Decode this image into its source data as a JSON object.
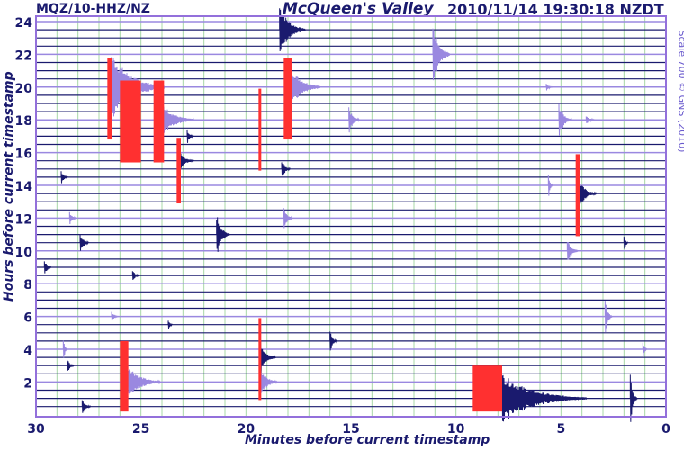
{
  "header": {
    "station": "MQZ/10-HHZ/NZ",
    "title": "McQueen's Valley",
    "timestamp": "2010/11/14 19:30:18 NZDT",
    "scale_note": "Scale 700 © GNS (2010)"
  },
  "chart_data": {
    "type": "line",
    "title": "McQueen's Valley",
    "xlabel": "Minutes before current timestamp",
    "ylabel": "Hours before current timestamp",
    "xlim": [
      30,
      0
    ],
    "ylim": [
      0,
      24
    ],
    "xticks": [
      "30",
      "25",
      "20",
      "15",
      "10",
      "5",
      "0"
    ],
    "xtick_values": [
      30,
      25,
      20,
      15,
      10,
      5,
      0
    ],
    "yticks": [
      "24",
      "22",
      "20",
      "18",
      "16",
      "14",
      "12",
      "10",
      "8",
      "6",
      "4",
      "2"
    ],
    "ytick_values": [
      24,
      22,
      20,
      18,
      16,
      14,
      12,
      10,
      8,
      6,
      4,
      2
    ],
    "grid": true,
    "trace_interval_hours": 0.5,
    "colors": {
      "trace": "#1a1a6e",
      "trace_alt": "#9a88e0",
      "grid": "#a8d8a8",
      "clip": "#ff3030",
      "frame": "#9370db"
    },
    "events": [
      {
        "min": 18.4,
        "hour": 23.5,
        "amp": 30,
        "coda": 1.2
      },
      {
        "min": 11.1,
        "hour": 22,
        "amp": 35,
        "coda": 0.8
      },
      {
        "min": 26.4,
        "hour": 20,
        "amp": 40,
        "coda": 2.5
      },
      {
        "min": 18.0,
        "hour": 20,
        "amp": 30,
        "coda": 1.5
      },
      {
        "min": 24.0,
        "hour": 18,
        "amp": 20,
        "coda": 1.5
      },
      {
        "min": 15.1,
        "hour": 18,
        "amp": 15,
        "coda": 0.5
      },
      {
        "min": 5.1,
        "hour": 18,
        "amp": 20,
        "coda": 0.6
      },
      {
        "min": 3.8,
        "hour": 18,
        "amp": 6,
        "coda": 0.4
      },
      {
        "min": 22.8,
        "hour": 17,
        "amp": 8,
        "coda": 0.3
      },
      {
        "min": 23.1,
        "hour": 15.5,
        "amp": 10,
        "coda": 0.6
      },
      {
        "min": 18.3,
        "hour": 15,
        "amp": 12,
        "coda": 0.4
      },
      {
        "min": 4.1,
        "hour": 13.5,
        "amp": 14,
        "coda": 0.8
      },
      {
        "min": 5.6,
        "hour": 14,
        "amp": 12,
        "coda": 0.2
      },
      {
        "min": 28.8,
        "hour": 14.5,
        "amp": 8,
        "coda": 0.3
      },
      {
        "min": 28.4,
        "hour": 12,
        "amp": 8,
        "coda": 0.3
      },
      {
        "min": 27.9,
        "hour": 10.5,
        "amp": 12,
        "coda": 0.4
      },
      {
        "min": 21.4,
        "hour": 11,
        "amp": 25,
        "coda": 0.6
      },
      {
        "min": 18.2,
        "hour": 12,
        "amp": 14,
        "coda": 0.4
      },
      {
        "min": 4.7,
        "hour": 10,
        "amp": 16,
        "coda": 0.5
      },
      {
        "min": 29.6,
        "hour": 9,
        "amp": 10,
        "coda": 0.3
      },
      {
        "min": 25.4,
        "hour": 8.5,
        "amp": 8,
        "coda": 0.3
      },
      {
        "min": 26.4,
        "hour": 6,
        "amp": 6,
        "coda": 0.3
      },
      {
        "min": 23.7,
        "hour": 5.5,
        "amp": 7,
        "coda": 0.2
      },
      {
        "min": 19.3,
        "hour": 3.5,
        "amp": 18,
        "coda": 0.7
      },
      {
        "min": 16.0,
        "hour": 4.5,
        "amp": 14,
        "coda": 0.3
      },
      {
        "min": 28.7,
        "hour": 4,
        "amp": 12,
        "coda": 0.2
      },
      {
        "min": 28.5,
        "hour": 3,
        "amp": 8,
        "coda": 0.3
      },
      {
        "min": 25.6,
        "hour": 2,
        "amp": 20,
        "coda": 1.5
      },
      {
        "min": 19.3,
        "hour": 2,
        "amp": 16,
        "coda": 0.8
      },
      {
        "min": 7.8,
        "hour": 1,
        "amp": 28,
        "coda": 4
      },
      {
        "min": 1.7,
        "hour": 1,
        "amp": 28,
        "coda": 0.3
      },
      {
        "min": 2.9,
        "hour": 6,
        "amp": 25,
        "coda": 0.3
      },
      {
        "min": 27.8,
        "hour": 0.5,
        "amp": 8,
        "coda": 0.4
      },
      {
        "min": 1.1,
        "hour": 4,
        "amp": 8,
        "coda": 0.2
      },
      {
        "min": 2.0,
        "hour": 10.5,
        "amp": 8,
        "coda": 0.2
      },
      {
        "min": 5.7,
        "hour": 20,
        "amp": 4,
        "coda": 0.3
      }
    ],
    "clipped": [
      {
        "min_start": 26.6,
        "min_end": 26.4,
        "hour_top": 21.8,
        "hour_bottom": 16.8
      },
      {
        "min_start": 26.0,
        "min_end": 25.0,
        "hour_top": 20.4,
        "hour_bottom": 15.4
      },
      {
        "min_start": 24.4,
        "min_end": 23.9,
        "hour_top": 20.4,
        "hour_bottom": 15.4
      },
      {
        "min_start": 23.3,
        "min_end": 23.1,
        "hour_top": 16.9,
        "hour_bottom": 12.9
      },
      {
        "min_start": 19.4,
        "min_end": 19.3,
        "hour_top": 19.9,
        "hour_bottom": 14.9
      },
      {
        "min_start": 18.2,
        "min_end": 17.8,
        "hour_top": 21.8,
        "hour_bottom": 16.8
      },
      {
        "min_start": 4.3,
        "min_end": 4.1,
        "hour_top": 15.9,
        "hour_bottom": 10.9
      },
      {
        "min_start": 26.0,
        "min_end": 25.6,
        "hour_top": 4.5,
        "hour_bottom": 0.2
      },
      {
        "min_start": 19.4,
        "min_end": 19.3,
        "hour_top": 5.9,
        "hour_bottom": 0.9
      },
      {
        "min_start": 9.2,
        "min_end": 7.8,
        "hour_top": 3.0,
        "hour_bottom": 0.2
      }
    ]
  }
}
